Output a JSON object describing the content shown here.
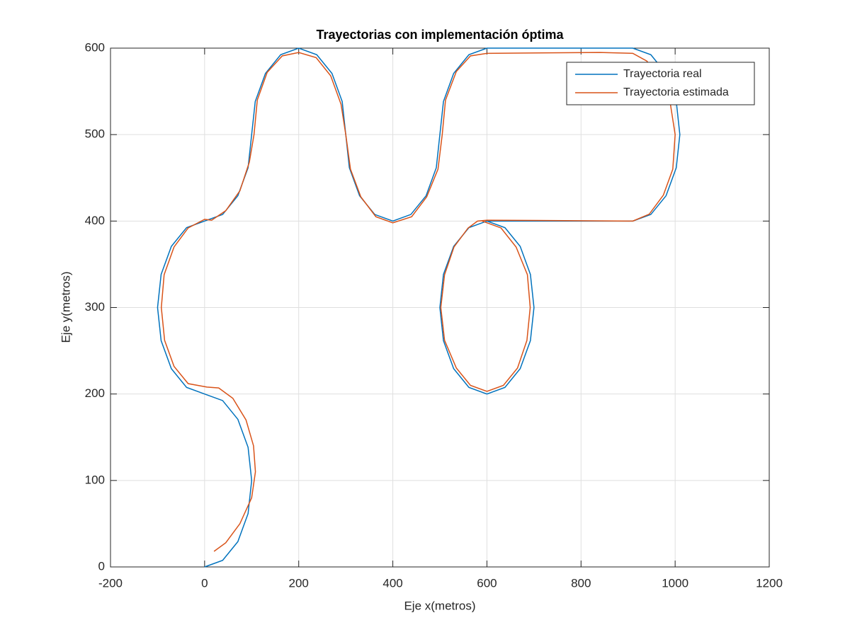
{
  "chart_data": {
    "type": "line",
    "title": "Trayectorias  con implementación óptima",
    "xlabel": "Eje x(metros)",
    "ylabel": "Eje y(metros)",
    "xlim": [
      -200,
      1200
    ],
    "ylim": [
      0,
      600
    ],
    "xticks": [
      -200,
      0,
      200,
      400,
      600,
      800,
      1000,
      1200
    ],
    "yticks": [
      0,
      100,
      200,
      300,
      400,
      500,
      600
    ],
    "grid": true,
    "legend": "upper right",
    "series": [
      {
        "name": "Trayectoria real",
        "color": "#0072BD",
        "x": [
          0,
          38.3,
          70.7,
          92.4,
          100,
          92.4,
          70.7,
          38.3,
          0,
          -38.3,
          -70.7,
          -92.4,
          -100,
          -92.4,
          -70.7,
          -38.3,
          0,
          38.3,
          70.7,
          92.4,
          100,
          107.6,
          129.3,
          161.7,
          200,
          238.3,
          270.7,
          292.4,
          300,
          307.6,
          329.3,
          361.7,
          400,
          438.3,
          470.7,
          492.4,
          500,
          507.6,
          529.3,
          561.7,
          600,
          910,
          948.3,
          980.7,
          1002.4,
          1010,
          1002.4,
          980.7,
          948.3,
          910,
          600,
          561.7,
          529.3,
          507.6,
          500,
          507.6,
          529.3,
          561.7,
          600,
          638.3,
          670.7,
          692.4,
          700,
          692.4,
          670.7,
          638.3,
          600
        ],
        "values": [
          0,
          7.6,
          29.3,
          61.7,
          100,
          138.3,
          170.7,
          192.4,
          200,
          207.6,
          229.3,
          261.7,
          300,
          338.3,
          370.7,
          392.4,
          400,
          407.6,
          429.3,
          461.7,
          500,
          538.3,
          570.7,
          592.4,
          600,
          592.4,
          570.7,
          538.3,
          500,
          461.7,
          429.3,
          407.6,
          400,
          407.6,
          429.3,
          461.7,
          500,
          538.3,
          570.7,
          592.4,
          600,
          600,
          592.4,
          570.7,
          538.3,
          500,
          461.7,
          429.3,
          407.6,
          400,
          400,
          392.4,
          370.7,
          338.3,
          300,
          261.7,
          229.3,
          207.6,
          200,
          207.6,
          229.3,
          261.7,
          300,
          338.3,
          370.7,
          392.4,
          400
        ]
      },
      {
        "name": "Trayectoria estimada",
        "color": "#D95319",
        "x": [
          20,
          45,
          75,
          100,
          108,
          104,
          88,
          60,
          30,
          5,
          -35,
          -65,
          -85,
          -92,
          -86,
          -65,
          -35,
          0,
          15,
          45,
          75,
          95,
          105,
          112,
          133,
          165,
          200,
          237,
          268,
          290,
          300,
          310,
          332,
          364,
          400,
          440,
          472,
          496,
          505,
          512,
          535,
          565,
          600,
          840,
          910,
          940,
          965,
          990,
          1000,
          995,
          975,
          945,
          910,
          600,
          580,
          560,
          530,
          510,
          502,
          510,
          535,
          565,
          600,
          635,
          665,
          685,
          692,
          686,
          662,
          630,
          590
        ],
        "values": [
          18,
          28,
          50,
          80,
          110,
          140,
          170,
          195,
          207,
          208,
          212,
          232,
          262,
          300,
          338,
          370,
          392,
          402,
          401,
          412,
          435,
          468,
          500,
          540,
          572,
          591,
          595,
          589,
          568,
          535,
          500,
          460,
          428,
          405,
          398,
          405,
          428,
          460,
          500,
          540,
          573,
          591,
          594,
          595,
          594,
          585,
          565,
          535,
          500,
          460,
          430,
          408,
          400,
          401,
          400,
          392,
          370,
          338,
          300,
          262,
          230,
          210,
          203,
          210,
          230,
          262,
          300,
          338,
          370,
          392,
          400
        ]
      }
    ]
  }
}
